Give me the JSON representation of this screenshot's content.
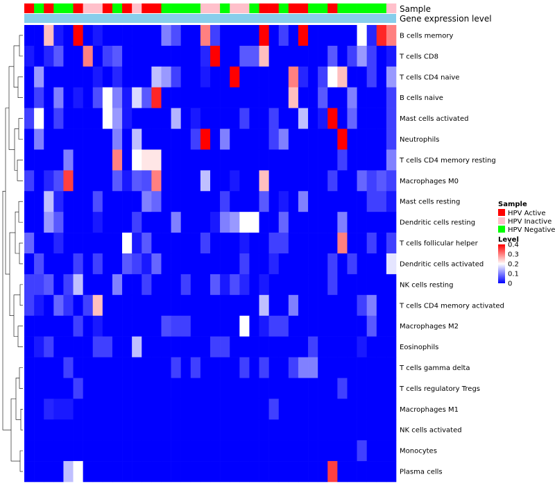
{
  "colors": {
    "hpv_active": "#ff0000",
    "hpv_inactive": "#ffc0cb",
    "hpv_negative": "#00ff00",
    "expression_bar": "#87ceeb",
    "heat_low": "#0000ff",
    "heat_mid": "#ffffff",
    "heat_high": "#ff0000"
  },
  "chart_data": {
    "type": "heatmap",
    "annotations": {
      "sample_label": "Sample",
      "expression_label": "Gene expression level"
    },
    "sample_groups": [
      "A",
      "N",
      "A",
      "N",
      "N",
      "A",
      "I",
      "I",
      "A",
      "N",
      "A",
      "I",
      "A",
      "A",
      "N",
      "N",
      "N",
      "N",
      "I",
      "I",
      "N",
      "I",
      "I",
      "N",
      "A",
      "A",
      "N",
      "A",
      "A",
      "N",
      "N",
      "A",
      "N",
      "N",
      "N",
      "N",
      "N",
      "I"
    ],
    "rows": [
      "B cells memory",
      "T cells CD8",
      "T cells CD4 naive",
      "B cells naive",
      "Mast cells activated",
      "Neutrophils",
      "T cells CD4 memory resting",
      "Macrophages M0",
      "Mast cells resting",
      "Dendritic cells resting",
      "T cells follicular helper",
      "Dendritic cells activated",
      "NK cells resting",
      "T cells CD4 memory activated",
      "Macrophages M2",
      "Eosinophils",
      "T cells gamma delta",
      "T cells regulatory  Tregs",
      "Macrophages M1",
      "NK cells activated",
      "Monocytes",
      "Plasma cells"
    ],
    "values": [
      [
        0.0,
        0.0,
        0.25,
        0.02,
        0.0,
        0.4,
        0.0,
        0.02,
        0.0,
        0.0,
        0.0,
        0.0,
        0.0,
        0.0,
        0.1,
        0.06,
        0.0,
        0.0,
        0.3,
        0.05,
        0.0,
        0.0,
        0.0,
        0.0,
        0.4,
        0.0,
        0.05,
        0.0,
        0.4,
        0.0,
        0.0,
        0.0,
        0.0,
        0.0,
        0.2,
        0.03,
        0.37,
        0.3
      ],
      [
        0.02,
        0.0,
        0.03,
        0.07,
        0.0,
        0.0,
        0.3,
        0.0,
        0.05,
        0.07,
        0.0,
        0.0,
        0.0,
        0.0,
        0.0,
        0.0,
        0.0,
        0.0,
        0.03,
        0.4,
        0.0,
        0.0,
        0.07,
        0.07,
        0.25,
        0.0,
        0.0,
        0.0,
        0.0,
        0.0,
        0.0,
        0.07,
        0.0,
        0.05,
        0.12,
        0.05,
        0.0,
        0.02
      ],
      [
        0.0,
        0.12,
        0.0,
        0.0,
        0.0,
        0.0,
        0.0,
        0.02,
        0.0,
        0.03,
        0.0,
        0.0,
        0.0,
        0.15,
        0.12,
        0.05,
        0.0,
        0.0,
        0.02,
        0.0,
        0.0,
        0.4,
        0.0,
        0.0,
        0.0,
        0.0,
        0.0,
        0.3,
        0.03,
        0.0,
        0.05,
        0.2,
        0.25,
        0.0,
        0.0,
        0.05,
        0.0,
        0.12
      ],
      [
        0.0,
        0.05,
        0.0,
        0.1,
        0.0,
        0.02,
        0.0,
        0.06,
        0.2,
        0.1,
        0.02,
        0.17,
        0.07,
        0.37,
        0.0,
        0.0,
        0.0,
        0.0,
        0.0,
        0.0,
        0.0,
        0.0,
        0.0,
        0.0,
        0.0,
        0.0,
        0.0,
        0.25,
        0.0,
        0.0,
        0.07,
        0.0,
        0.0,
        0.1,
        0.0,
        0.0,
        0.0,
        0.05
      ],
      [
        0.05,
        0.2,
        0.0,
        0.05,
        0.0,
        0.0,
        0.0,
        0.0,
        0.2,
        0.12,
        0.02,
        0.0,
        0.0,
        0.0,
        0.0,
        0.14,
        0.0,
        0.02,
        0.0,
        0.0,
        0.0,
        0.0,
        0.05,
        0.0,
        0.0,
        0.05,
        0.0,
        0.0,
        0.15,
        0.0,
        0.02,
        0.4,
        0.0,
        0.08,
        0.0,
        0.0,
        0.0,
        0.05
      ],
      [
        0.0,
        0.1,
        0.0,
        0.0,
        0.0,
        0.0,
        0.0,
        0.0,
        0.0,
        0.1,
        0.0,
        0.15,
        0.0,
        0.0,
        0.0,
        0.0,
        0.0,
        0.05,
        0.4,
        0.0,
        0.1,
        0.0,
        0.0,
        0.0,
        0.0,
        0.05,
        0.1,
        0.0,
        0.0,
        0.0,
        0.0,
        0.0,
        0.4,
        0.0,
        0.0,
        0.0,
        0.0,
        0.05
      ],
      [
        0.0,
        0.0,
        0.0,
        0.0,
        0.1,
        0.0,
        0.0,
        0.0,
        0.0,
        0.3,
        0.0,
        0.2,
        0.22,
        0.22,
        0.0,
        0.0,
        0.0,
        0.0,
        0.0,
        0.0,
        0.0,
        0.0,
        0.0,
        0.0,
        0.0,
        0.0,
        0.0,
        0.0,
        0.0,
        0.0,
        0.0,
        0.0,
        0.05,
        0.0,
        0.0,
        0.0,
        0.0,
        0.1
      ],
      [
        0.05,
        0.0,
        0.03,
        0.06,
        0.35,
        0.0,
        0.0,
        0.0,
        0.0,
        0.07,
        0.02,
        0.07,
        0.06,
        0.3,
        0.0,
        0.0,
        0.0,
        0.0,
        0.15,
        0.0,
        0.0,
        0.02,
        0.0,
        0.0,
        0.25,
        0.0,
        0.0,
        0.0,
        0.0,
        0.0,
        0.0,
        0.05,
        0.0,
        0.0,
        0.08,
        0.05,
        0.07,
        0.05
      ],
      [
        0.0,
        0.0,
        0.15,
        0.03,
        0.0,
        0.0,
        0.0,
        0.06,
        0.0,
        0.0,
        0.0,
        0.0,
        0.1,
        0.08,
        0.0,
        0.0,
        0.0,
        0.0,
        0.0,
        0.0,
        0.05,
        0.0,
        0.0,
        0.0,
        0.07,
        0.0,
        0.02,
        0.0,
        0.1,
        0.0,
        0.0,
        0.0,
        0.0,
        0.0,
        0.0,
        0.05,
        0.05,
        0.02
      ],
      [
        0.0,
        0.0,
        0.12,
        0.07,
        0.0,
        0.0,
        0.0,
        0.02,
        0.0,
        0.0,
        0.0,
        0.05,
        0.0,
        0.0,
        0.0,
        0.1,
        0.0,
        0.0,
        0.0,
        0.02,
        0.1,
        0.12,
        0.2,
        0.2,
        0.0,
        0.0,
        0.08,
        0.0,
        0.0,
        0.0,
        0.0,
        0.0,
        0.1,
        0.0,
        0.0,
        0.0,
        0.0,
        0.0
      ],
      [
        0.08,
        0.0,
        0.0,
        0.03,
        0.0,
        0.0,
        0.0,
        0.0,
        0.0,
        0.0,
        0.2,
        0.02,
        0.07,
        0.0,
        0.0,
        0.0,
        0.0,
        0.0,
        0.05,
        0.0,
        0.0,
        0.0,
        0.02,
        0.0,
        0.0,
        0.05,
        0.05,
        0.0,
        0.0,
        0.0,
        0.0,
        0.0,
        0.3,
        0.0,
        0.0,
        0.05,
        0.0,
        0.05
      ],
      [
        0.0,
        0.06,
        0.0,
        0.0,
        0.0,
        0.05,
        0.0,
        0.05,
        0.0,
        0.0,
        0.07,
        0.05,
        0.02,
        0.08,
        0.0,
        0.0,
        0.0,
        0.0,
        0.0,
        0.0,
        0.0,
        0.0,
        0.05,
        0.0,
        0.0,
        0.03,
        0.0,
        0.0,
        0.0,
        0.0,
        0.0,
        0.05,
        0.0,
        0.05,
        0.0,
        0.0,
        0.0,
        0.18
      ],
      [
        0.05,
        0.05,
        0.07,
        0.0,
        0.05,
        0.15,
        0.0,
        0.0,
        0.0,
        0.1,
        0.0,
        0.0,
        0.05,
        0.0,
        0.0,
        0.0,
        0.05,
        0.0,
        0.0,
        0.07,
        0.02,
        0.06,
        0.03,
        0.0,
        0.02,
        0.0,
        0.0,
        0.0,
        0.0,
        0.0,
        0.0,
        0.05,
        0.0,
        0.0,
        0.0,
        0.0,
        0.0,
        0.0
      ],
      [
        0.05,
        0.02,
        0.0,
        0.08,
        0.04,
        0.0,
        0.05,
        0.25,
        0.0,
        0.0,
        0.0,
        0.0,
        0.0,
        0.0,
        0.0,
        0.0,
        0.0,
        0.0,
        0.0,
        0.0,
        0.0,
        0.0,
        0.0,
        0.0,
        0.15,
        0.0,
        0.0,
        0.1,
        0.0,
        0.0,
        0.0,
        0.0,
        0.0,
        0.0,
        0.05,
        0.1,
        0.0,
        0.0
      ],
      [
        0.0,
        0.0,
        0.0,
        0.0,
        0.0,
        0.05,
        0.0,
        0.02,
        0.0,
        0.0,
        0.0,
        0.0,
        0.0,
        0.0,
        0.06,
        0.05,
        0.05,
        0.0,
        0.0,
        0.0,
        0.0,
        0.0,
        0.2,
        0.0,
        0.02,
        0.05,
        0.05,
        0.0,
        0.0,
        0.0,
        0.0,
        0.0,
        0.0,
        0.0,
        0.0,
        0.07,
        0.0,
        0.0
      ],
      [
        0.0,
        0.02,
        0.05,
        0.0,
        0.0,
        0.0,
        0.0,
        0.05,
        0.05,
        0.0,
        0.0,
        0.15,
        0.0,
        0.0,
        0.0,
        0.0,
        0.0,
        0.0,
        0.0,
        0.05,
        0.05,
        0.0,
        0.0,
        0.0,
        0.0,
        0.0,
        0.0,
        0.0,
        0.0,
        0.05,
        0.0,
        0.0,
        0.0,
        0.0,
        0.02,
        0.0,
        0.0,
        0.0
      ],
      [
        0.0,
        0.0,
        0.0,
        0.0,
        0.05,
        0.0,
        0.0,
        0.0,
        0.0,
        0.0,
        0.0,
        0.0,
        0.0,
        0.0,
        0.0,
        0.05,
        0.0,
        0.05,
        0.0,
        0.0,
        0.0,
        0.0,
        0.05,
        0.0,
        0.05,
        0.0,
        0.0,
        0.05,
        0.1,
        0.1,
        0.0,
        0.0,
        0.0,
        0.0,
        0.0,
        0.0,
        0.0,
        0.0
      ],
      [
        0.0,
        0.0,
        0.0,
        0.0,
        0.0,
        0.05,
        0.0,
        0.0,
        0.0,
        0.0,
        0.0,
        0.0,
        0.0,
        0.0,
        0.0,
        0.0,
        0.0,
        0.0,
        0.0,
        0.0,
        0.0,
        0.0,
        0.0,
        0.0,
        0.0,
        0.0,
        0.0,
        0.0,
        0.0,
        0.0,
        0.0,
        0.0,
        0.05,
        0.0,
        0.0,
        0.0,
        0.0,
        0.0
      ],
      [
        0.0,
        0.0,
        0.03,
        0.02,
        0.02,
        0.0,
        0.0,
        0.0,
        0.0,
        0.0,
        0.0,
        0.0,
        0.0,
        0.0,
        0.0,
        0.0,
        0.0,
        0.0,
        0.0,
        0.0,
        0.0,
        0.0,
        0.0,
        0.0,
        0.0,
        0.05,
        0.0,
        0.0,
        0.0,
        0.0,
        0.0,
        0.0,
        0.0,
        0.0,
        0.0,
        0.0,
        0.0,
        0.0
      ],
      [
        0.0,
        0.0,
        0.0,
        0.0,
        0.0,
        0.0,
        0.0,
        0.0,
        0.0,
        0.0,
        0.0,
        0.0,
        0.0,
        0.0,
        0.0,
        0.0,
        0.0,
        0.0,
        0.0,
        0.0,
        0.0,
        0.0,
        0.0,
        0.0,
        0.0,
        0.0,
        0.0,
        0.0,
        0.0,
        0.0,
        0.0,
        0.0,
        0.0,
        0.0,
        0.0,
        0.0,
        0.0,
        0.0
      ],
      [
        0.0,
        0.0,
        0.0,
        0.0,
        0.0,
        0.0,
        0.0,
        0.0,
        0.0,
        0.0,
        0.0,
        0.0,
        0.0,
        0.0,
        0.0,
        0.0,
        0.0,
        0.0,
        0.0,
        0.0,
        0.0,
        0.0,
        0.0,
        0.0,
        0.0,
        0.0,
        0.0,
        0.0,
        0.0,
        0.0,
        0.0,
        0.0,
        0.0,
        0.0,
        0.05,
        0.0,
        0.0,
        0.0
      ],
      [
        0.0,
        0.0,
        0.0,
        0.0,
        0.15,
        0.2,
        0.0,
        0.0,
        0.0,
        0.0,
        0.0,
        0.0,
        0.0,
        0.0,
        0.0,
        0.0,
        0.0,
        0.0,
        0.0,
        0.0,
        0.0,
        0.0,
        0.0,
        0.0,
        0.0,
        0.0,
        0.0,
        0.0,
        0.0,
        0.0,
        0.0,
        0.35,
        0.0,
        0.0,
        0.0,
        0.0,
        0.0,
        0.0
      ]
    ],
    "color_scale": {
      "min": 0,
      "mid": 0.2,
      "max": 0.4
    },
    "legend": {
      "sample_title": "Sample",
      "sample_entries": [
        {
          "key": "A",
          "label": "HPV Active"
        },
        {
          "key": "I",
          "label": "HPV Inactive"
        },
        {
          "key": "N",
          "label": "HPV Negative"
        }
      ],
      "level_title": "Level",
      "level_ticks": [
        "0.4",
        "0.3",
        "0.2",
        "0.1",
        "0"
      ],
      "level_tick_values": [
        0.4,
        0.3,
        0.2,
        0.1,
        0
      ]
    }
  }
}
